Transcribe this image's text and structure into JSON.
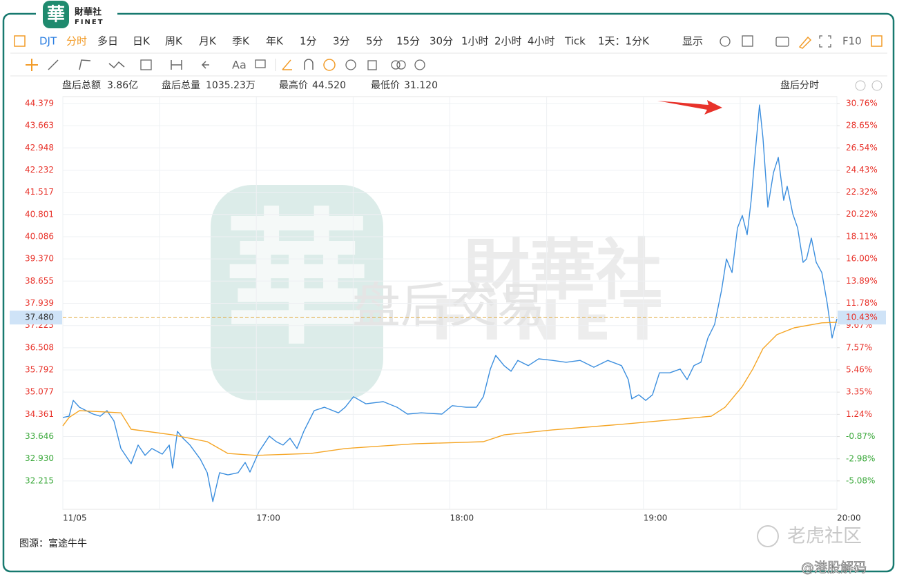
{
  "logo": {
    "mark": "華",
    "name": "財華社",
    "latin": "FINET"
  },
  "toolbar": {
    "symbol": "DJT",
    "tabs": [
      "分时",
      "多日",
      "日K",
      "周K",
      "月K",
      "季K",
      "年K",
      "1分",
      "3分",
      "5分",
      "15分",
      "30分",
      "1小时",
      "2小时",
      "4小时",
      "Tick"
    ],
    "range": "1天：1分K",
    "display": "显示",
    "f10": "F10",
    "text_tool": "Aa"
  },
  "info": {
    "amount_label": "盘后总额",
    "amount": "3.86亿",
    "volume_label": "盘后总量",
    "volume": "1035.23万",
    "high_label": "最高价",
    "high": "44.520",
    "low_label": "最低价",
    "low": "31.120",
    "mode": "盘后分时"
  },
  "watermark": {
    "mark": "華",
    "name": "財華社",
    "latin": "FINET",
    "session": "盘后交易",
    "community": "老虎社区",
    "author": "@港股解码"
  },
  "source": "图源：富途牛牛",
  "chart_data": {
    "type": "line",
    "xlim": [
      16,
      20
    ],
    "xticks": [
      {
        "value": 16,
        "label": "11/05"
      },
      {
        "value": 17,
        "label": "17:00"
      },
      {
        "value": 18,
        "label": "18:00"
      },
      {
        "value": 19,
        "label": "19:00"
      },
      {
        "value": 20,
        "label": "20:00"
      }
    ],
    "ylim": [
      31.3,
      44.6
    ],
    "yticks": [
      44.379,
      43.663,
      42.948,
      42.232,
      41.517,
      40.801,
      40.086,
      {
        "value": 39.37,
        "label": "39.370"
      },
      38.655,
      37.939,
      37.223,
      36.508,
      35.792,
      35.077,
      34.361,
      33.646,
      {
        "value": 32.93,
        "label": "32.930"
      },
      32.215
    ],
    "y2lim": [
      -7.78,
      31.41
    ],
    "y2ticks": [
      {
        "value": 30.76,
        "label": "30.76%"
      },
      {
        "value": 28.65,
        "label": "28.65%"
      },
      {
        "value": 26.54,
        "label": "26.54%"
      },
      {
        "value": 24.43,
        "label": "24.43%"
      },
      {
        "value": 22.32,
        "label": "22.32%"
      },
      {
        "value": 20.22,
        "label": "20.22%"
      },
      {
        "value": 18.11,
        "label": "18.11%"
      },
      {
        "value": 16.0,
        "label": "16.00%"
      },
      {
        "value": 13.89,
        "label": "13.89%"
      },
      {
        "value": 11.78,
        "label": "11.78%"
      },
      {
        "value": 9.67,
        "label": "9.67%"
      },
      {
        "value": 7.57,
        "label": "7.57%"
      },
      {
        "value": 5.46,
        "label": "5.46%"
      },
      {
        "value": 3.35,
        "label": "3.35%"
      },
      {
        "value": 1.24,
        "label": "1.24%"
      },
      {
        "value": -0.87,
        "label": "-0.87%"
      },
      {
        "value": -2.98,
        "label": "-2.98%"
      },
      {
        "value": -5.08,
        "label": "-5.08%"
      }
    ],
    "grid": true,
    "ref_line": {
      "value": 37.48,
      "label": "37.480",
      "pct_label": "10.43%"
    },
    "series": [
      {
        "color": "#3b8ede",
        "x": [
          16.0,
          16.032,
          16.054,
          16.086,
          16.121,
          16.157,
          16.193,
          16.228,
          16.264,
          16.3,
          16.353,
          16.389,
          16.425,
          16.46,
          16.514,
          16.55,
          16.567,
          16.592,
          16.621,
          16.657,
          16.71,
          16.746,
          16.775,
          16.81,
          16.853,
          16.906,
          16.942,
          16.967,
          17.013,
          17.067,
          17.103,
          17.138,
          17.174,
          17.21,
          17.245,
          17.299,
          17.352,
          17.424,
          17.459,
          17.502,
          17.566,
          17.656,
          17.727,
          17.781,
          17.852,
          17.959,
          18.012,
          18.084,
          18.137,
          18.173,
          18.209,
          18.237,
          18.28,
          18.316,
          18.351,
          18.405,
          18.459,
          18.53,
          18.601,
          18.673,
          18.744,
          18.816,
          18.887,
          18.922,
          18.94,
          18.976,
          19.012,
          19.047,
          19.083,
          19.136,
          19.19,
          19.226,
          19.261,
          19.297,
          19.333,
          19.368,
          19.404,
          19.429,
          19.458,
          19.486,
          19.511,
          19.536,
          19.557,
          19.575,
          19.6,
          19.618,
          19.643,
          19.672,
          19.697,
          19.725,
          19.743,
          19.772,
          19.797,
          19.825,
          19.843,
          19.868,
          19.893,
          19.922,
          19.95,
          19.975,
          20.0
        ],
        "values": [
          34.26,
          34.3,
          34.81,
          34.59,
          34.48,
          34.37,
          34.3,
          34.48,
          34.15,
          33.26,
          32.77,
          33.37,
          33.04,
          33.26,
          33.08,
          33.37,
          32.63,
          33.81,
          33.59,
          33.37,
          32.92,
          32.48,
          31.55,
          32.48,
          32.41,
          32.48,
          32.81,
          32.5,
          33.15,
          33.66,
          33.48,
          33.37,
          33.59,
          33.26,
          33.81,
          34.48,
          34.59,
          34.41,
          34.59,
          34.93,
          34.7,
          34.77,
          34.59,
          34.37,
          34.41,
          34.37,
          34.64,
          34.59,
          34.59,
          34.93,
          35.82,
          36.26,
          35.93,
          35.75,
          36.1,
          35.93,
          36.15,
          36.1,
          36.04,
          36.1,
          35.88,
          36.1,
          35.93,
          35.48,
          34.86,
          34.99,
          34.81,
          34.99,
          35.7,
          35.7,
          35.82,
          35.48,
          35.93,
          36.04,
          36.82,
          37.26,
          38.37,
          39.37,
          38.93,
          40.37,
          40.77,
          40.15,
          41.26,
          42.6,
          44.33,
          43.27,
          41.04,
          42.15,
          42.64,
          41.26,
          41.71,
          40.82,
          40.37,
          39.26,
          39.37,
          40.04,
          39.26,
          38.93,
          37.93,
          36.82,
          37.44
        ]
      },
      {
        "color": "#f5a524",
        "x": [
          16.0,
          16.032,
          16.086,
          16.211,
          16.3,
          16.353,
          16.567,
          16.746,
          16.853,
          16.996,
          17.281,
          17.459,
          17.816,
          18.173,
          18.28,
          18.53,
          18.887,
          19.351,
          19.422,
          19.511,
          19.565,
          19.618,
          19.69,
          19.779,
          19.922,
          20.0
        ],
        "values": [
          33.99,
          34.26,
          34.48,
          34.44,
          34.41,
          33.88,
          33.7,
          33.48,
          33.1,
          33.04,
          33.1,
          33.26,
          33.41,
          33.48,
          33.7,
          33.86,
          34.04,
          34.3,
          34.59,
          35.26,
          35.82,
          36.48,
          36.93,
          37.15,
          37.31,
          37.33
        ]
      }
    ]
  }
}
